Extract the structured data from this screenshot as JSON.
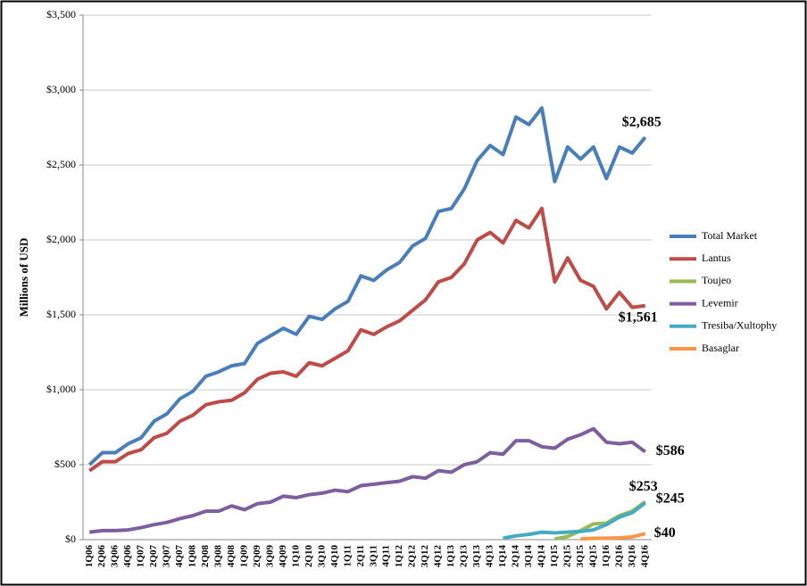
{
  "chart_data": {
    "type": "line",
    "y_label": "Millions of USD",
    "categories": [
      "1Q06",
      "2Q06",
      "3Q06",
      "4Q06",
      "1Q07",
      "2Q07",
      "3Q07",
      "4Q07",
      "1Q08",
      "2Q08",
      "3Q08",
      "4Q08",
      "1Q09",
      "2Q09",
      "3Q09",
      "4Q09",
      "1Q10",
      "2Q10",
      "3Q10",
      "4Q10",
      "1Q11",
      "2Q11",
      "3Q11",
      "4Q11",
      "1Q12",
      "2Q12",
      "3Q12",
      "4Q12",
      "1Q13",
      "2Q13",
      "3Q13",
      "4Q13",
      "1Q14",
      "2Q14",
      "3Q14",
      "4Q14",
      "1Q15",
      "2Q15",
      "3Q15",
      "4Q15",
      "1Q16",
      "2Q16",
      "3Q16",
      "4Q16"
    ],
    "series": [
      {
        "name": "Total Market",
        "color": "#4a7ebb",
        "end_label": "$2,685",
        "values": [
          500,
          580,
          580,
          640,
          680,
          790,
          840,
          940,
          990,
          1090,
          1120,
          1160,
          1175,
          1310,
          1360,
          1410,
          1370,
          1490,
          1470,
          1540,
          1590,
          1760,
          1730,
          1800,
          1850,
          1960,
          2010,
          2190,
          2210,
          2340,
          2530,
          2630,
          2570,
          2820,
          2770,
          2880,
          2390,
          2620,
          2540,
          2620,
          2410,
          2620,
          2580,
          2685
        ]
      },
      {
        "name": "Lantus",
        "color": "#be4b48",
        "end_label": "$1,561",
        "values": [
          460,
          520,
          520,
          575,
          600,
          680,
          710,
          790,
          830,
          900,
          920,
          930,
          980,
          1070,
          1110,
          1120,
          1090,
          1180,
          1160,
          1210,
          1260,
          1400,
          1370,
          1420,
          1460,
          1530,
          1600,
          1720,
          1750,
          1840,
          2000,
          2050,
          1980,
          2130,
          2080,
          2210,
          1720,
          1880,
          1730,
          1690,
          1540,
          1650,
          1550,
          1561
        ]
      },
      {
        "name": "Toujeo",
        "color": "#98b954",
        "end_label": "$253",
        "values": [
          null,
          null,
          null,
          null,
          null,
          null,
          null,
          null,
          null,
          null,
          null,
          null,
          null,
          null,
          null,
          null,
          null,
          null,
          null,
          null,
          null,
          null,
          null,
          null,
          null,
          null,
          null,
          null,
          null,
          null,
          null,
          null,
          null,
          null,
          null,
          null,
          5,
          20,
          60,
          105,
          110,
          160,
          190,
          253
        ]
      },
      {
        "name": "Levemir",
        "color": "#7d5fa0",
        "end_label": "$586",
        "values": [
          50,
          60,
          60,
          65,
          80,
          100,
          115,
          140,
          160,
          190,
          190,
          225,
          200,
          240,
          250,
          290,
          280,
          300,
          310,
          330,
          320,
          360,
          370,
          380,
          390,
          420,
          410,
          460,
          450,
          500,
          520,
          580,
          570,
          660,
          660,
          620,
          610,
          670,
          700,
          740,
          650,
          640,
          650,
          586
        ]
      },
      {
        "name": "Tresiba/Xultophy",
        "color": "#46aac5",
        "end_label": "$245",
        "values": [
          null,
          null,
          null,
          null,
          null,
          null,
          null,
          null,
          null,
          null,
          null,
          null,
          null,
          null,
          null,
          null,
          null,
          null,
          null,
          null,
          null,
          null,
          null,
          null,
          null,
          null,
          null,
          null,
          null,
          null,
          null,
          null,
          10,
          25,
          35,
          50,
          45,
          50,
          55,
          65,
          100,
          150,
          180,
          245
        ]
      },
      {
        "name": "Basaglar",
        "color": "#f79646",
        "end_label": "$40",
        "values": [
          null,
          null,
          null,
          null,
          null,
          null,
          null,
          null,
          null,
          null,
          null,
          null,
          null,
          null,
          null,
          null,
          null,
          null,
          null,
          null,
          null,
          null,
          null,
          null,
          null,
          null,
          null,
          null,
          null,
          null,
          null,
          null,
          null,
          null,
          null,
          null,
          null,
          null,
          5,
          8,
          10,
          12,
          18,
          40
        ]
      }
    ],
    "ylim": [
      0,
      3500
    ],
    "yticks": [
      {
        "value": 0,
        "label": "$0"
      },
      {
        "value": 500,
        "label": "$500"
      },
      {
        "value": 1000,
        "label": "$1,000"
      },
      {
        "value": 1500,
        "label": "$1,500"
      },
      {
        "value": 2000,
        "label": "$2,000"
      },
      {
        "value": 2500,
        "label": "$2,500"
      },
      {
        "value": 3000,
        "label": "$3,000"
      },
      {
        "value": 3500,
        "label": "$3,500"
      }
    ],
    "grid": true,
    "legend": "right"
  }
}
